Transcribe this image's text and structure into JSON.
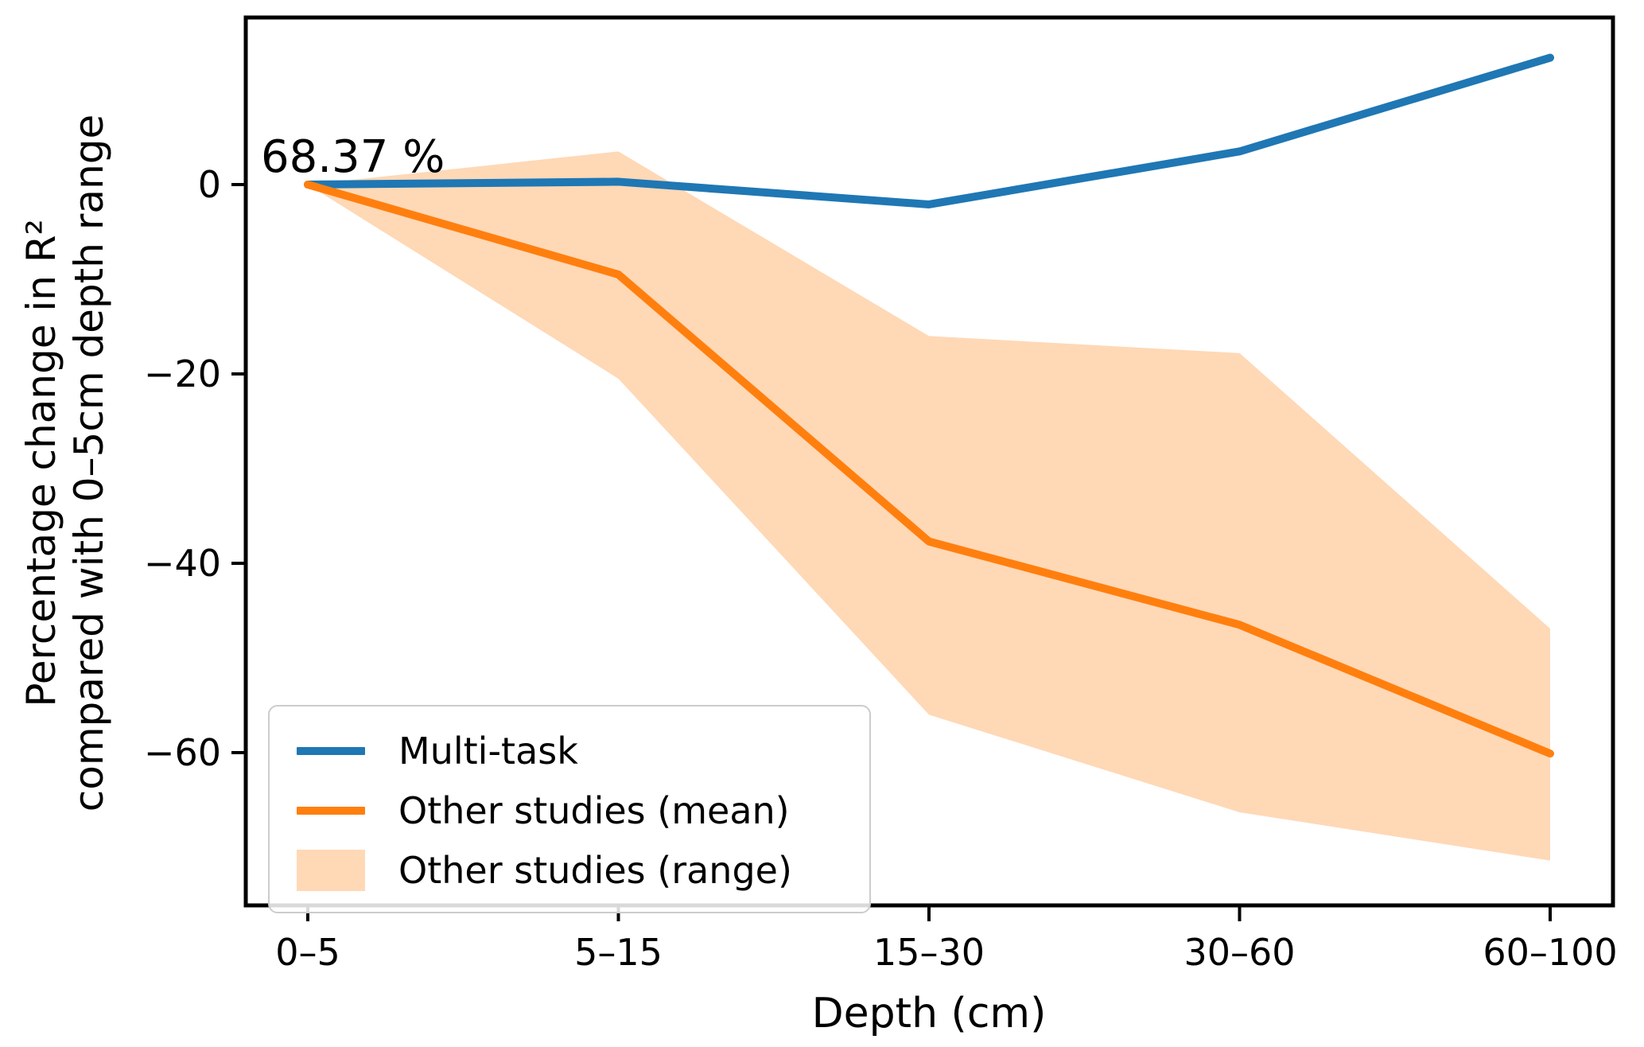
{
  "chart_data": {
    "type": "line",
    "title": "",
    "xlabel": "Depth (cm)",
    "ylabel_line1": "Percentage change in R²",
    "ylabel_line2": "compared with 0–5cm depth range",
    "categories": [
      "0–5",
      "5–15",
      "15–30",
      "30–60",
      "60–100"
    ],
    "series": [
      {
        "name": "Multi-task",
        "color": "#1f77b4",
        "values": [
          0,
          0.3,
          -2.1,
          3.5,
          13.4
        ]
      },
      {
        "name": "Other studies (mean)",
        "color": "#ff7f0e",
        "values": [
          0,
          -9.5,
          -37.7,
          -46.5,
          -60.1
        ]
      }
    ],
    "band": {
      "name": "Other studies (range)",
      "color": "#ff7f0e",
      "opacity": 0.3,
      "upper": [
        0,
        3.5,
        -16.0,
        -17.8,
        -46.9
      ],
      "lower": [
        0,
        -20.5,
        -56.0,
        -66.3,
        -71.4
      ]
    },
    "yticks": {
      "values": [
        0,
        -20,
        -40,
        -60
      ],
      "labels": [
        "0",
        "−20",
        "−40",
        "−60"
      ]
    },
    "ylim": [
      -76.3,
      17.7
    ],
    "grid": false,
    "annotation": {
      "text": "68.37 %"
    },
    "legend": {
      "position": "lower left",
      "entries": [
        {
          "label": "Multi-task",
          "swatch": "line",
          "color": "#1f77b4"
        },
        {
          "label": "Other studies (mean)",
          "swatch": "line",
          "color": "#ff7f0e"
        },
        {
          "label": "Other studies (range)",
          "swatch": "patch",
          "color": "rgba(255,127,14,0.3)"
        }
      ]
    },
    "axis_color": "#000000"
  }
}
